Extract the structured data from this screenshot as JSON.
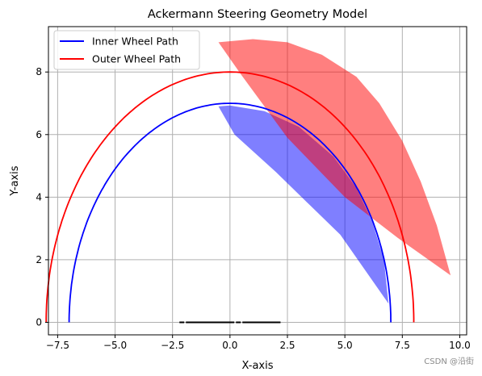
{
  "chart_data": {
    "type": "line",
    "title": "Ackermann Steering Geometry Model",
    "xlabel": "X-axis",
    "ylabel": "Y-axis",
    "xlim": [
      -7.9,
      10.3
    ],
    "ylim": [
      -0.4,
      9.45
    ],
    "xticks": [
      -7.5,
      -5.0,
      -2.5,
      0.0,
      2.5,
      5.0,
      7.5,
      10.0
    ],
    "xtick_labels": [
      "−7.5",
      "−5.0",
      "−2.5",
      "0.0",
      "2.5",
      "5.0",
      "7.5",
      "10.0"
    ],
    "yticks": [
      0,
      2,
      4,
      6,
      8
    ],
    "ytick_labels": [
      "0",
      "2",
      "4",
      "6",
      "8"
    ],
    "grid": true,
    "legend": {
      "placement": "top-left"
    },
    "series": [
      {
        "name": "Inner Wheel Path",
        "color": "#0000ff",
        "kind": "semicircle",
        "radius": 7.0,
        "x": [
          -7.0,
          -6.5,
          -5.5,
          -4.0,
          -2.0,
          0.0,
          2.0,
          4.0,
          5.5,
          6.5,
          7.0
        ],
        "y": [
          0.0,
          2.6,
          4.33,
          5.74,
          6.71,
          7.0,
          6.71,
          5.74,
          4.33,
          2.6,
          0.0
        ]
      },
      {
        "name": "Outer Wheel Path",
        "color": "#ff0000",
        "kind": "semicircle",
        "radius": 8.0,
        "x": [
          -7.0,
          -6.5,
          -5.0,
          -3.0,
          -1.0,
          1.0,
          3.0,
          5.0,
          7.0,
          8.5,
          9.0
        ],
        "y": [
          0.0,
          2.83,
          5.0,
          6.78,
          7.75,
          8.0,
          7.75,
          7.14,
          5.29,
          2.87,
          0.0
        ]
      }
    ],
    "fills": [
      {
        "color": "#0000ff",
        "opacity": 0.5,
        "points": [
          [
            -0.5,
            6.9
          ],
          [
            0.0,
            6.93
          ],
          [
            1.5,
            6.75
          ],
          [
            3.0,
            6.25
          ],
          [
            4.5,
            5.3
          ],
          [
            5.5,
            4.3
          ],
          [
            6.2,
            3.2
          ],
          [
            6.7,
            2.0
          ],
          [
            6.9,
            0.6
          ],
          [
            4.8,
            2.8
          ],
          [
            2.0,
            4.8
          ],
          [
            0.2,
            6.0
          ],
          [
            -0.5,
            6.9
          ]
        ]
      },
      {
        "color": "#ff0000",
        "opacity": 0.5,
        "points": [
          [
            -0.5,
            8.95
          ],
          [
            1.0,
            9.05
          ],
          [
            2.5,
            8.95
          ],
          [
            4.0,
            8.55
          ],
          [
            5.5,
            7.85
          ],
          [
            6.5,
            7.0
          ],
          [
            7.5,
            5.8
          ],
          [
            8.3,
            4.5
          ],
          [
            9.0,
            3.1
          ],
          [
            9.6,
            1.5
          ],
          [
            7.3,
            2.7
          ],
          [
            5.0,
            4.0
          ],
          [
            2.5,
            5.9
          ],
          [
            0.5,
            7.9
          ],
          [
            -0.5,
            8.95
          ]
        ]
      }
    ],
    "baseline_segment": {
      "color": "#000000",
      "x": [
        -2.2,
        2.2
      ],
      "y": [
        0,
        0
      ]
    }
  },
  "watermark": "CSDN @沿街"
}
